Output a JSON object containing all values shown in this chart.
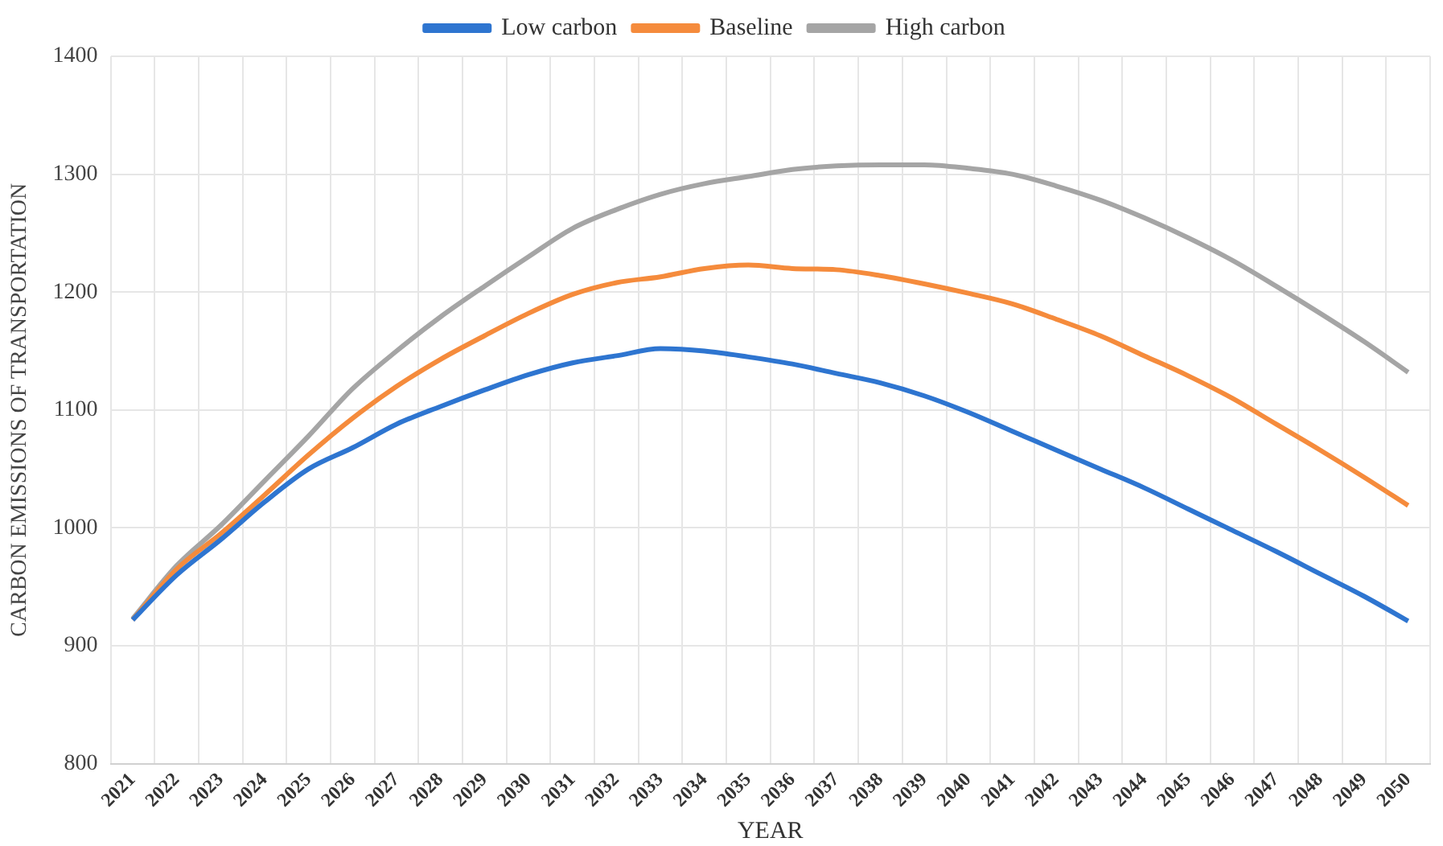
{
  "chart_data": {
    "type": "line",
    "xlabel": "YEAR",
    "ylabel": "CARBON EMISSIONS OF TRANSPORTATION",
    "categories": [
      "2021",
      "2022",
      "2023",
      "2024",
      "2025",
      "2026",
      "2027",
      "2028",
      "2029",
      "2030",
      "2031",
      "2032",
      "2033",
      "2034",
      "2035",
      "2036",
      "2037",
      "2038",
      "2039",
      "2040",
      "2041",
      "2042",
      "2043",
      "2044",
      "2045",
      "2046",
      "2047",
      "2048",
      "2049",
      "2050"
    ],
    "series": [
      {
        "name": "Low carbon",
        "color": "#2e75d0",
        "values": [
          922,
          960,
          990,
          1022,
          1050,
          1068,
          1088,
          1103,
          1117,
          1130,
          1140,
          1146,
          1152,
          1150,
          1145,
          1139,
          1131,
          1123,
          1112,
          1098,
          1082,
          1066,
          1050,
          1034,
          1016,
          998,
          980,
          961,
          942,
          921
        ]
      },
      {
        "name": "Baseline",
        "color": "#f58b3c",
        "values": [
          922,
          965,
          995,
          1028,
          1062,
          1093,
          1120,
          1143,
          1163,
          1182,
          1198,
          1208,
          1213,
          1220,
          1223,
          1220,
          1219,
          1214,
          1207,
          1199,
          1190,
          1177,
          1163,
          1146,
          1129,
          1110,
          1088,
          1066,
          1043,
          1019
        ]
      },
      {
        "name": "High carbon",
        "color": "#a5a5a5",
        "values": [
          923,
          968,
          1002,
          1040,
          1078,
          1118,
          1150,
          1179,
          1205,
          1230,
          1254,
          1270,
          1283,
          1292,
          1298,
          1304,
          1307,
          1308,
          1308,
          1305,
          1300,
          1290,
          1278,
          1263,
          1246,
          1227,
          1205,
          1182,
          1158,
          1132
        ]
      }
    ],
    "ylim": [
      800,
      1400
    ],
    "yticks": [
      800,
      900,
      1000,
      1100,
      1200,
      1300,
      1400
    ],
    "grid": true,
    "legend": "top",
    "marker": "none",
    "line_style": "solid"
  }
}
